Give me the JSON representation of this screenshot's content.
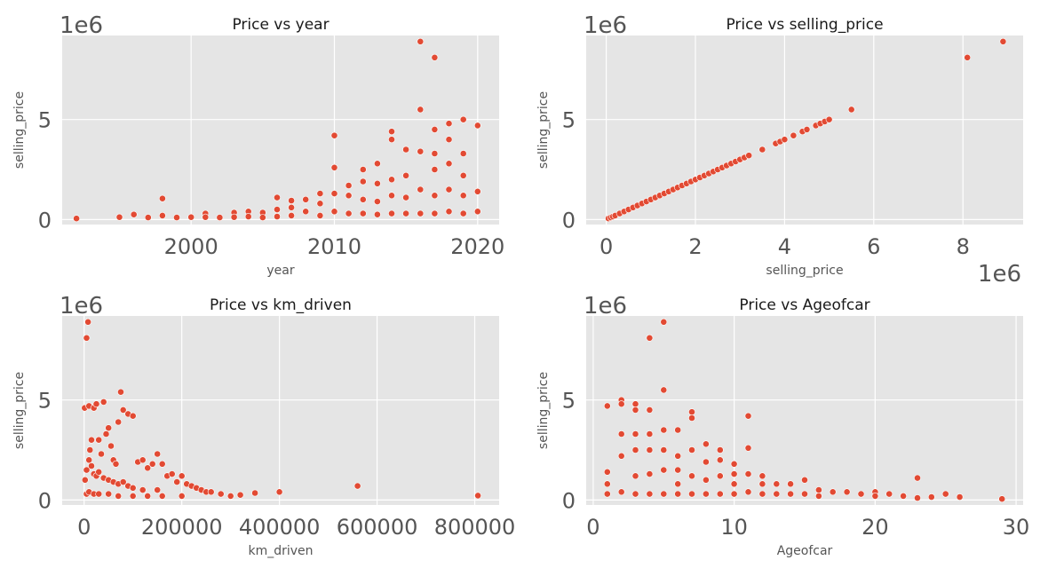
{
  "chart_data": [
    {
      "type": "scatter",
      "title": "Price vs year",
      "xlabel": "year",
      "ylabel": "selling_price",
      "x_offset_label": "",
      "y_offset_label": "1e6",
      "xlim": [
        1991,
        2021.5
      ],
      "ylim": [
        -0.25,
        9.2
      ],
      "xticks": [
        2000,
        2010,
        2020
      ],
      "xtick_labels": [
        "2000",
        "2010",
        "2020"
      ],
      "yticks": [
        0,
        5
      ],
      "ytick_labels": [
        "0",
        "5"
      ],
      "grid": true,
      "marker_color": "#e24a33",
      "background": "#e5e5e5",
      "series": [
        {
          "x": [
            1992,
            1995,
            1996,
            1997,
            1998,
            1998,
            1999,
            2000,
            2001,
            2001,
            2002,
            2003,
            2003,
            2004,
            2004,
            2005,
            2005,
            2006,
            2006,
            2006,
            2007,
            2007,
            2007,
            2008,
            2008,
            2009,
            2009,
            2009,
            2010,
            2010,
            2010,
            2010,
            2011,
            2011,
            2011,
            2012,
            2012,
            2012,
            2012,
            2013,
            2013,
            2013,
            2013,
            2014,
            2014,
            2014,
            2014,
            2014,
            2015,
            2015,
            2015,
            2015,
            2016,
            2016,
            2016,
            2016,
            2016,
            2017,
            2017,
            2017,
            2017,
            2017,
            2017,
            2018,
            2018,
            2018,
            2018,
            2018,
            2019,
            2019,
            2019,
            2019,
            2019,
            2020,
            2020,
            2020
          ],
          "y": [
            0.05,
            0.12,
            0.25,
            0.1,
            1.05,
            0.2,
            0.1,
            0.12,
            0.3,
            0.12,
            0.1,
            0.35,
            0.12,
            0.4,
            0.15,
            0.35,
            0.1,
            1.1,
            0.5,
            0.15,
            0.95,
            0.6,
            0.2,
            1.0,
            0.4,
            1.3,
            0.8,
            0.2,
            4.2,
            2.6,
            1.3,
            0.4,
            1.7,
            1.2,
            0.3,
            2.5,
            1.9,
            1.0,
            0.3,
            2.8,
            1.8,
            0.9,
            0.25,
            4.4,
            4.0,
            2.0,
            1.2,
            0.3,
            3.5,
            2.2,
            1.1,
            0.3,
            8.9,
            5.5,
            3.4,
            1.5,
            0.3,
            8.1,
            4.5,
            3.3,
            2.5,
            1.2,
            0.3,
            4.8,
            4.0,
            2.8,
            1.5,
            0.4,
            5.0,
            3.3,
            2.2,
            1.2,
            0.3,
            4.7,
            1.4,
            0.4
          ]
        }
      ]
    },
    {
      "type": "scatter",
      "title": "Price vs selling_price",
      "xlabel": "selling_price",
      "ylabel": "selling_price",
      "x_offset_label": "1e6",
      "y_offset_label": "1e6",
      "xlim": [
        -0.45,
        9.35
      ],
      "ylim": [
        -0.25,
        9.2
      ],
      "xticks": [
        0,
        2,
        4,
        6,
        8
      ],
      "xtick_labels": [
        "0",
        "2",
        "4",
        "6",
        "8"
      ],
      "yticks": [
        0,
        5
      ],
      "ytick_labels": [
        "0",
        "5"
      ],
      "grid": true,
      "marker_color": "#e24a33",
      "background": "#e5e5e5",
      "series": [
        {
          "x": [
            0.05,
            0.1,
            0.15,
            0.2,
            0.3,
            0.4,
            0.5,
            0.6,
            0.7,
            0.8,
            0.9,
            1.0,
            1.1,
            1.2,
            1.3,
            1.4,
            1.5,
            1.6,
            1.7,
            1.8,
            1.9,
            2.0,
            2.1,
            2.2,
            2.3,
            2.4,
            2.5,
            2.6,
            2.7,
            2.8,
            2.9,
            3.0,
            3.1,
            3.2,
            3.5,
            3.8,
            3.9,
            4.0,
            4.2,
            4.4,
            4.5,
            4.7,
            4.8,
            4.9,
            5.0,
            5.5,
            8.1,
            8.9
          ],
          "y": [
            0.05,
            0.1,
            0.15,
            0.2,
            0.3,
            0.4,
            0.5,
            0.6,
            0.7,
            0.8,
            0.9,
            1.0,
            1.1,
            1.2,
            1.3,
            1.4,
            1.5,
            1.6,
            1.7,
            1.8,
            1.9,
            2.0,
            2.1,
            2.2,
            2.3,
            2.4,
            2.5,
            2.6,
            2.7,
            2.8,
            2.9,
            3.0,
            3.1,
            3.2,
            3.5,
            3.8,
            3.9,
            4.0,
            4.2,
            4.4,
            4.5,
            4.7,
            4.8,
            4.9,
            5.0,
            5.5,
            8.1,
            8.9
          ]
        }
      ]
    },
    {
      "type": "scatter",
      "title": "Price vs km_driven",
      "xlabel": "km_driven",
      "ylabel": "selling_price",
      "x_offset_label": "",
      "y_offset_label": "1e6",
      "xlim": [
        -45000,
        850000
      ],
      "ylim": [
        -0.25,
        9.2
      ],
      "xticks": [
        0,
        200000,
        400000,
        600000,
        800000
      ],
      "xtick_labels": [
        "0",
        "200000",
        "400000",
        "600000",
        "800000"
      ],
      "yticks": [
        0,
        5
      ],
      "ytick_labels": [
        "0",
        "5"
      ],
      "grid": true,
      "marker_color": "#e24a33",
      "background": "#e5e5e5",
      "series": [
        {
          "x": [
            1000,
            5000,
            8000,
            10000,
            12000,
            15000,
            20000,
            25000,
            30000,
            35000,
            40000,
            45000,
            50000,
            55000,
            60000,
            65000,
            70000,
            75000,
            80000,
            90000,
            100000,
            110000,
            120000,
            130000,
            140000,
            150000,
            160000,
            170000,
            180000,
            190000,
            200000,
            210000,
            220000,
            230000,
            240000,
            250000,
            260000,
            280000,
            300000,
            320000,
            350000,
            400000,
            560000,
            806599,
            2000,
            5000,
            10000,
            15000,
            20000,
            25000,
            30000,
            40000,
            50000,
            60000,
            70000,
            80000,
            90000,
            100000,
            120000,
            150000,
            5000,
            10000,
            20000,
            30000,
            50000,
            70000,
            100000,
            130000,
            160000,
            200000
          ],
          "y": [
            4.6,
            8.1,
            8.9,
            4.7,
            2.5,
            3.0,
            4.6,
            4.8,
            3.0,
            2.3,
            4.9,
            3.3,
            3.6,
            2.7,
            2.0,
            1.8,
            3.9,
            5.4,
            4.5,
            4.3,
            4.2,
            1.9,
            2.0,
            1.6,
            1.8,
            2.3,
            1.8,
            1.2,
            1.3,
            0.9,
            1.2,
            0.8,
            0.7,
            0.6,
            0.5,
            0.4,
            0.4,
            0.3,
            0.2,
            0.25,
            0.35,
            0.4,
            0.7,
            0.22,
            1.0,
            1.5,
            2.0,
            1.7,
            1.3,
            1.2,
            1.4,
            1.1,
            1.0,
            0.9,
            0.8,
            0.9,
            0.7,
            0.6,
            0.5,
            0.5,
            0.3,
            0.4,
            0.3,
            0.3,
            0.3,
            0.2,
            0.2,
            0.2,
            0.2,
            0.2
          ]
        }
      ]
    },
    {
      "type": "scatter",
      "title": "Price vs Ageofcar",
      "xlabel": "Ageofcar",
      "ylabel": "selling_price",
      "x_offset_label": "",
      "y_offset_label": "1e6",
      "xlim": [
        -0.5,
        30.5
      ],
      "ylim": [
        -0.25,
        9.2
      ],
      "xticks": [
        0,
        10,
        20,
        30
      ],
      "xtick_labels": [
        "0",
        "10",
        "20",
        "30"
      ],
      "yticks": [
        0,
        5
      ],
      "ytick_labels": [
        "0",
        "5"
      ],
      "grid": true,
      "marker_color": "#e24a33",
      "background": "#e5e5e5",
      "series": [
        {
          "x": [
            1,
            1,
            1,
            1,
            2,
            2,
            2,
            2,
            2,
            3,
            3,
            3,
            3,
            3,
            3,
            4,
            4,
            4,
            4,
            4,
            4,
            5,
            5,
            5,
            5,
            5,
            5,
            6,
            6,
            6,
            6,
            6,
            7,
            7,
            7,
            7,
            7,
            8,
            8,
            8,
            8,
            9,
            9,
            9,
            9,
            10,
            10,
            10,
            10,
            11,
            11,
            11,
            11,
            12,
            12,
            12,
            13,
            13,
            14,
            14,
            15,
            15,
            16,
            16,
            17,
            18,
            19,
            20,
            20,
            21,
            22,
            23,
            23,
            24,
            25,
            26,
            29
          ],
          "y": [
            4.7,
            1.4,
            0.8,
            0.3,
            5.0,
            4.8,
            3.3,
            2.2,
            0.4,
            4.8,
            4.5,
            3.3,
            2.5,
            1.2,
            0.3,
            8.1,
            4.5,
            3.3,
            2.5,
            1.3,
            0.3,
            8.9,
            5.5,
            3.5,
            2.5,
            1.5,
            0.3,
            3.5,
            2.2,
            1.5,
            0.8,
            0.3,
            4.4,
            4.1,
            2.5,
            1.2,
            0.3,
            2.8,
            1.9,
            1.0,
            0.3,
            2.5,
            2.0,
            1.2,
            0.3,
            1.8,
            1.3,
            0.8,
            0.3,
            4.2,
            2.6,
            1.3,
            0.4,
            1.2,
            0.8,
            0.3,
            0.8,
            0.3,
            0.8,
            0.3,
            1.0,
            0.3,
            0.5,
            0.2,
            0.4,
            0.4,
            0.3,
            0.4,
            0.2,
            0.3,
            0.2,
            1.1,
            0.1,
            0.15,
            0.3,
            0.15,
            0.05
          ]
        }
      ]
    }
  ]
}
